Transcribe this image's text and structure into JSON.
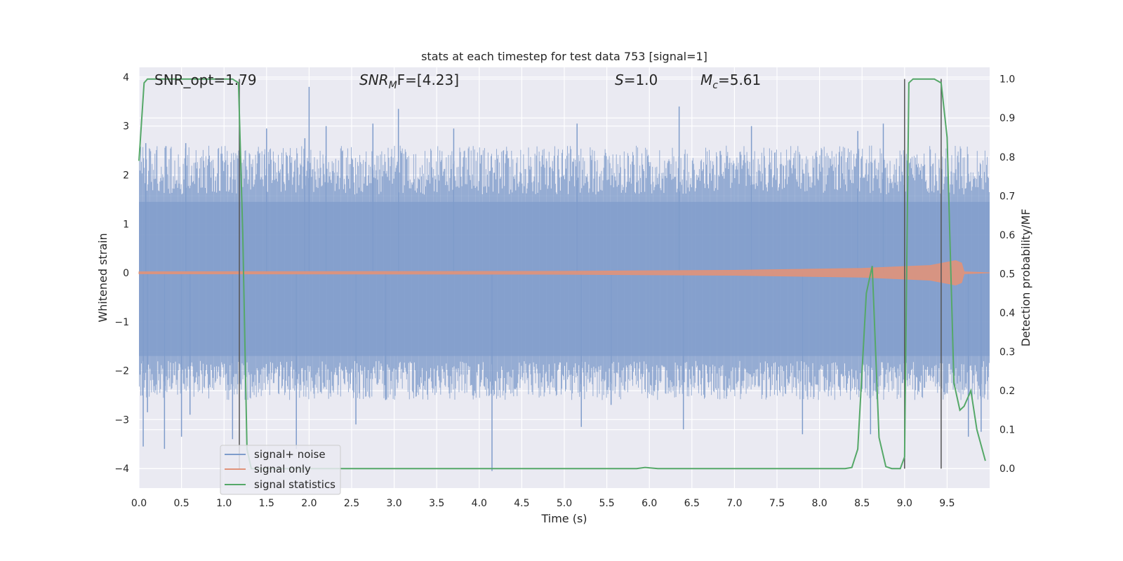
{
  "chart_data": {
    "type": "line",
    "title": "stats at each timestep for test data 753 [signal=1]",
    "xlabel": "Time (s)",
    "ylabel": "Whitened strain",
    "ylabel_right": "Detection probability/MF",
    "xlim": [
      0.0,
      10.0
    ],
    "ylim": [
      -4.4,
      4.2
    ],
    "ylim_right": [
      -0.05,
      1.03
    ],
    "x_ticks": [
      "0.0",
      "0.5",
      "1.0",
      "1.5",
      "2.0",
      "2.5",
      "3.0",
      "3.5",
      "4.0",
      "4.5",
      "5.0",
      "5.5",
      "6.0",
      "6.5",
      "7.0",
      "7.5",
      "8.0",
      "8.5",
      "9.0",
      "9.5"
    ],
    "y_ticks": [
      "−4",
      "−3",
      "−2",
      "−1",
      "0",
      "1",
      "2",
      "3",
      "4"
    ],
    "y_right_ticks": [
      "0.0",
      "0.1",
      "0.2",
      "0.3",
      "0.4",
      "0.5",
      "0.6",
      "0.7",
      "0.8",
      "0.9",
      "1.0"
    ],
    "grid": true,
    "legend_position": "lower-left",
    "annotations": {
      "snr_opt": "SNR_opt=1.79",
      "snr_mf_sym": "SNR",
      "snr_mf_sub": "M",
      "snr_mf_rest": "F=[4.23]",
      "s_sym": "S",
      "s_rest": "=1.0",
      "mc_sym": "M",
      "mc_sub": "c",
      "mc_rest": "=5.61"
    },
    "vlines_x": [
      1.18,
      9.0,
      9.43
    ],
    "colors": {
      "noise": "#7f9ccb",
      "signal": "#e0927a",
      "stat": "#55a868",
      "vline": "#555555",
      "background": "#eaeaf2"
    },
    "series": [
      {
        "name": "signal+ noise",
        "style": "noise-band",
        "band_lower": -1.7,
        "band_upper": 1.45,
        "peaks": [
          {
            "x": 0.05,
            "value": -3.55
          },
          {
            "x": 0.1,
            "value": -2.85
          },
          {
            "x": 0.3,
            "value": -3.6
          },
          {
            "x": 0.5,
            "value": -3.35
          },
          {
            "x": 0.6,
            "value": -2.9
          },
          {
            "x": 1.1,
            "value": -3.4
          },
          {
            "x": 1.85,
            "value": -3.6
          },
          {
            "x": 2.55,
            "value": -3.1
          },
          {
            "x": 2.9,
            "value": -2.6
          },
          {
            "x": 4.15,
            "value": -4.05
          },
          {
            "x": 5.2,
            "value": -3.15
          },
          {
            "x": 5.55,
            "value": -2.7
          },
          {
            "x": 6.4,
            "value": -3.2
          },
          {
            "x": 7.8,
            "value": -3.3
          },
          {
            "x": 8.6,
            "value": -3.3
          },
          {
            "x": 9.75,
            "value": -3.35
          },
          {
            "x": 9.9,
            "value": -3.25
          },
          {
            "x": 0.08,
            "value": 2.65
          },
          {
            "x": 0.55,
            "value": 2.65
          },
          {
            "x": 1.5,
            "value": 2.95
          },
          {
            "x": 1.95,
            "value": 2.75
          },
          {
            "x": 2.0,
            "value": 3.8
          },
          {
            "x": 2.2,
            "value": 3.0
          },
          {
            "x": 2.75,
            "value": 3.05
          },
          {
            "x": 3.05,
            "value": 3.35
          },
          {
            "x": 3.7,
            "value": 2.95
          },
          {
            "x": 5.15,
            "value": 3.05
          },
          {
            "x": 6.35,
            "value": 3.4
          },
          {
            "x": 7.2,
            "value": 3.0
          },
          {
            "x": 8.45,
            "value": 2.9
          },
          {
            "x": 8.75,
            "value": 3.05
          }
        ]
      },
      {
        "name": "signal only",
        "style": "chirp",
        "envelope": [
          {
            "x": 0.0,
            "value": 0.02
          },
          {
            "x": 5.0,
            "value": 0.03
          },
          {
            "x": 7.0,
            "value": 0.05
          },
          {
            "x": 8.5,
            "value": 0.09
          },
          {
            "x": 9.3,
            "value": 0.15
          },
          {
            "x": 9.6,
            "value": 0.25
          },
          {
            "x": 9.67,
            "value": 0.2
          },
          {
            "x": 9.7,
            "value": 0.02
          },
          {
            "x": 10.0,
            "value": 0.0
          }
        ]
      },
      {
        "name": "signal statistics",
        "style": "line",
        "axis": "right",
        "x": [
          0.0,
          0.06,
          0.1,
          0.2,
          1.0,
          1.1,
          1.17,
          1.22,
          1.27,
          1.32,
          1.5,
          2.0,
          3.0,
          4.0,
          5.0,
          5.85,
          5.95,
          6.1,
          7.0,
          8.0,
          8.3,
          8.38,
          8.45,
          8.5,
          8.55,
          8.62,
          8.7,
          8.78,
          8.85,
          8.95,
          9.0,
          9.05,
          9.1,
          9.35,
          9.43,
          9.5,
          9.58,
          9.65,
          9.7,
          9.78,
          9.85,
          9.95
        ],
        "y": [
          0.79,
          0.99,
          1.0,
          1.0,
          1.0,
          1.0,
          0.99,
          0.6,
          0.05,
          0.0,
          0.0,
          0.0,
          0.0,
          0.0,
          0.0,
          0.0,
          0.003,
          0.0,
          0.0,
          0.0,
          0.0,
          0.003,
          0.05,
          0.25,
          0.45,
          0.52,
          0.08,
          0.005,
          0.0,
          0.0,
          0.03,
          0.99,
          1.0,
          1.0,
          0.99,
          0.85,
          0.22,
          0.15,
          0.16,
          0.2,
          0.1,
          0.02
        ]
      }
    ]
  }
}
